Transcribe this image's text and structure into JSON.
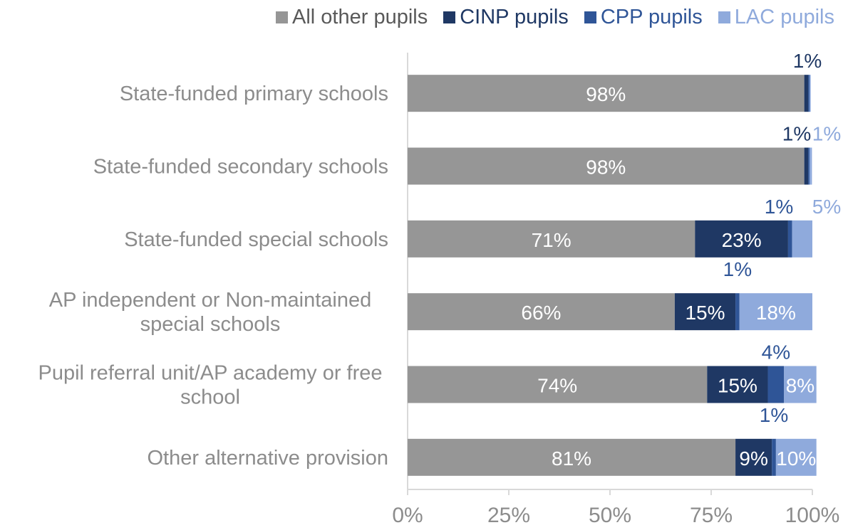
{
  "chart_data": {
    "type": "bar",
    "orientation": "horizontal",
    "stacked": true,
    "categories": [
      "State-funded primary schools",
      "State-funded secondary schools",
      "State-funded special schools",
      "AP independent or Non-maintained special schools",
      "Pupil referral unit/AP academy or free school",
      "Other alternative provision"
    ],
    "category_lines": [
      [
        "State-funded primary schools"
      ],
      [
        "State-funded secondary schools"
      ],
      [
        "State-funded special schools"
      ],
      [
        "AP independent or Non-maintained",
        "special schools"
      ],
      [
        "Pupil referral unit/AP academy or free",
        "school"
      ],
      [
        "Other alternative provision"
      ]
    ],
    "series": [
      {
        "name": "All other pupils",
        "color": "#969696",
        "label_color": "#ffffff",
        "label_position": "inside",
        "values": [
          98,
          98,
          71,
          66,
          74,
          81
        ]
      },
      {
        "name": "CINP pupils",
        "color": "#1f3864",
        "label_color": "#1f3864",
        "label_position": "inside",
        "values": [
          1,
          1,
          23,
          15,
          15,
          9
        ]
      },
      {
        "name": "CPP pupils",
        "color": "#2f5597",
        "label_color": "#2f5597",
        "label_position": "above",
        "values": [
          0.3,
          0.3,
          1,
          1,
          4,
          1
        ]
      },
      {
        "name": "LAC pupils",
        "color": "#8faadc",
        "label_color": "#8faadc",
        "label_position": "inside",
        "values": [
          0.3,
          0.6,
          5,
          18,
          8,
          10
        ]
      }
    ],
    "data_labels": [
      [
        "98%",
        "1%",
        "",
        ""
      ],
      [
        "98%",
        "1%",
        "",
        "1%"
      ],
      [
        "71%",
        "23%",
        "1%",
        "5%"
      ],
      [
        "66%",
        "15%",
        "1%",
        "18%"
      ],
      [
        "74%",
        "15%",
        "4%",
        "8%"
      ],
      [
        "81%",
        "9%",
        "1%",
        "10%"
      ]
    ],
    "xticks": [
      "0%",
      "25%",
      "50%",
      "75%",
      "100%"
    ],
    "xlim": [
      0,
      100
    ],
    "title": "",
    "xlabel": "",
    "ylabel": "",
    "legend_position": "top",
    "grid": false,
    "colors": {
      "category_label": "#8c8c8c",
      "tick_label": "#8c8c8c",
      "axis": "#d9d9d9"
    }
  }
}
